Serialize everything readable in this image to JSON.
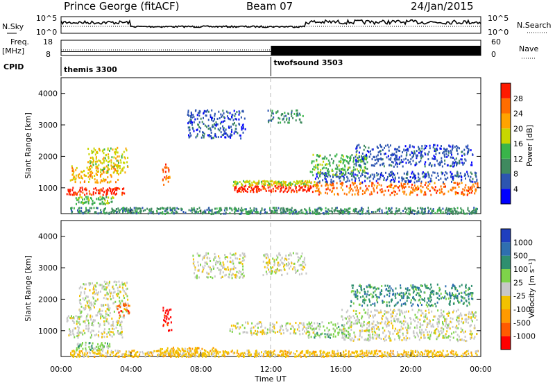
{
  "header": {
    "station": "Prince George (fitACF)",
    "beam": "Beam 07",
    "date": "24/Jan/2015"
  },
  "top_panels": {
    "nsky_label": "N.Sky",
    "nsky_ticks": [
      "10^5",
      "10^0"
    ],
    "nsearch_ticks": [
      "10^5",
      "10^0"
    ],
    "nsearch_label": "N.Search",
    "freq_label": "Freq.",
    "freq_unit": "[MHz]",
    "freq_ticks": [
      "18",
      "8"
    ],
    "nave_ticks": [
      "60",
      "0"
    ],
    "nave_label": "Nave",
    "cpid_label": "CPID",
    "cpid_segments": [
      {
        "name": "themis 3300",
        "start_hour": 0,
        "end_hour": 12
      },
      {
        "name": "twofsound 3503",
        "start_hour": 12,
        "end_hour": 24
      }
    ],
    "freq_before_mhz": 10.5,
    "nave_after_level": 18
  },
  "chart_data": [
    {
      "type": "heatmap",
      "title": "",
      "ylabel": "Slant Range [km]",
      "ylim": [
        180,
        4500
      ],
      "yticks": [
        "1000",
        "2000",
        "3000",
        "4000"
      ],
      "xlim": [
        0,
        24
      ],
      "colorbar_label": "Power [dB]",
      "colorbar_ticks": [
        "28",
        "24",
        "20",
        "16",
        "12",
        "8",
        "4"
      ],
      "colors": [
        "#0000ff",
        "#2d55b0",
        "#3f8a5f",
        "#39b54a",
        "#c8d600",
        "#ffa300",
        "#ff6d00",
        "#ff1a00"
      ],
      "regions": [
        {
          "t": [
            0.3,
            3.6
          ],
          "r": [
            800,
            1050
          ],
          "c": 7
        },
        {
          "t": [
            0.5,
            3.3
          ],
          "r": [
            1200,
            1750
          ],
          "c": 5
        },
        {
          "t": [
            1.5,
            3.8
          ],
          "r": [
            1500,
            2300
          ],
          "c": 4
        },
        {
          "t": [
            0.8,
            3.0
          ],
          "r": [
            500,
            750
          ],
          "c": 3
        },
        {
          "t": [
            5.7,
            6.2
          ],
          "r": [
            1100,
            1800
          ],
          "c": 6
        },
        {
          "t": [
            9.8,
            14.5
          ],
          "r": [
            900,
            1100
          ],
          "c": 7
        },
        {
          "t": [
            9.8,
            14.5
          ],
          "r": [
            1100,
            1250
          ],
          "c": 4
        },
        {
          "t": [
            7.2,
            10.5
          ],
          "r": [
            2600,
            3500
          ],
          "c": 1
        },
        {
          "t": [
            11.8,
            13.8
          ],
          "r": [
            3100,
            3500
          ],
          "c": 2
        },
        {
          "t": [
            14.5,
            23.8
          ],
          "r": [
            800,
            1200
          ],
          "c": 6
        },
        {
          "t": [
            14.5,
            23.8
          ],
          "r": [
            1200,
            1550
          ],
          "c": 1
        },
        {
          "t": [
            14.2,
            17.5
          ],
          "r": [
            1400,
            2100
          ],
          "c": 3
        },
        {
          "t": [
            16.8,
            23.5
          ],
          "r": [
            1700,
            2400
          ],
          "c": 1
        },
        {
          "t": [
            0.5,
            23.8
          ],
          "r": [
            200,
            400
          ],
          "c": 2
        }
      ]
    },
    {
      "type": "heatmap",
      "title": "",
      "ylabel": "Slant Range [km]",
      "ylim": [
        180,
        4500
      ],
      "yticks": [
        "1000",
        "2000",
        "3000",
        "4000"
      ],
      "xlim": [
        0,
        24
      ],
      "xlabel": "Time UT",
      "xticks": [
        "00:00",
        "04:00",
        "08:00",
        "12:00",
        "16:00",
        "20:00",
        "00:00"
      ],
      "colorbar_label": "Velocity [m s⁻¹]",
      "colorbar_ticks": [
        "1000",
        "500",
        "100",
        "25",
        "-25",
        "-100",
        "-500",
        "-1000"
      ],
      "colors": [
        "#ff0000",
        "#ff5a00",
        "#ff9a00",
        "#f2c200",
        "#c8c8c8",
        "#7ed34a",
        "#2f8f6f",
        "#2f6fb0",
        "#1f3fbf"
      ],
      "regions": [
        {
          "t": [
            0.3,
            3.6
          ],
          "r": [
            800,
            1500
          ],
          "c": 4
        },
        {
          "t": [
            1.0,
            3.8
          ],
          "r": [
            1500,
            2600
          ],
          "c": 4
        },
        {
          "t": [
            3.2,
            3.9
          ],
          "r": [
            1500,
            1900
          ],
          "c": 1
        },
        {
          "t": [
            5.8,
            6.3
          ],
          "r": [
            1000,
            1800
          ],
          "c": 0
        },
        {
          "t": [
            0.8,
            2.8
          ],
          "r": [
            400,
            650
          ],
          "c": 5
        },
        {
          "t": [
            5.5,
            9.0
          ],
          "r": [
            200,
            500
          ],
          "c": 3
        },
        {
          "t": [
            9.6,
            14.5
          ],
          "r": [
            900,
            1300
          ],
          "c": 4
        },
        {
          "t": [
            14.0,
            16.5
          ],
          "r": [
            800,
            1300
          ],
          "c": 5
        },
        {
          "t": [
            16.0,
            23.8
          ],
          "r": [
            700,
            1300
          ],
          "c": 4
        },
        {
          "t": [
            16.0,
            23.8
          ],
          "r": [
            1300,
            1700
          ],
          "c": 4
        },
        {
          "t": [
            7.5,
            10.5
          ],
          "r": [
            2700,
            3500
          ],
          "c": 4
        },
        {
          "t": [
            11.5,
            14.0
          ],
          "r": [
            2800,
            3500
          ],
          "c": 4
        },
        {
          "t": [
            16.5,
            23.5
          ],
          "r": [
            1800,
            2500
          ],
          "c": 6
        },
        {
          "t": [
            0.5,
            23.8
          ],
          "r": [
            200,
            400
          ],
          "c": 3
        }
      ]
    }
  ]
}
